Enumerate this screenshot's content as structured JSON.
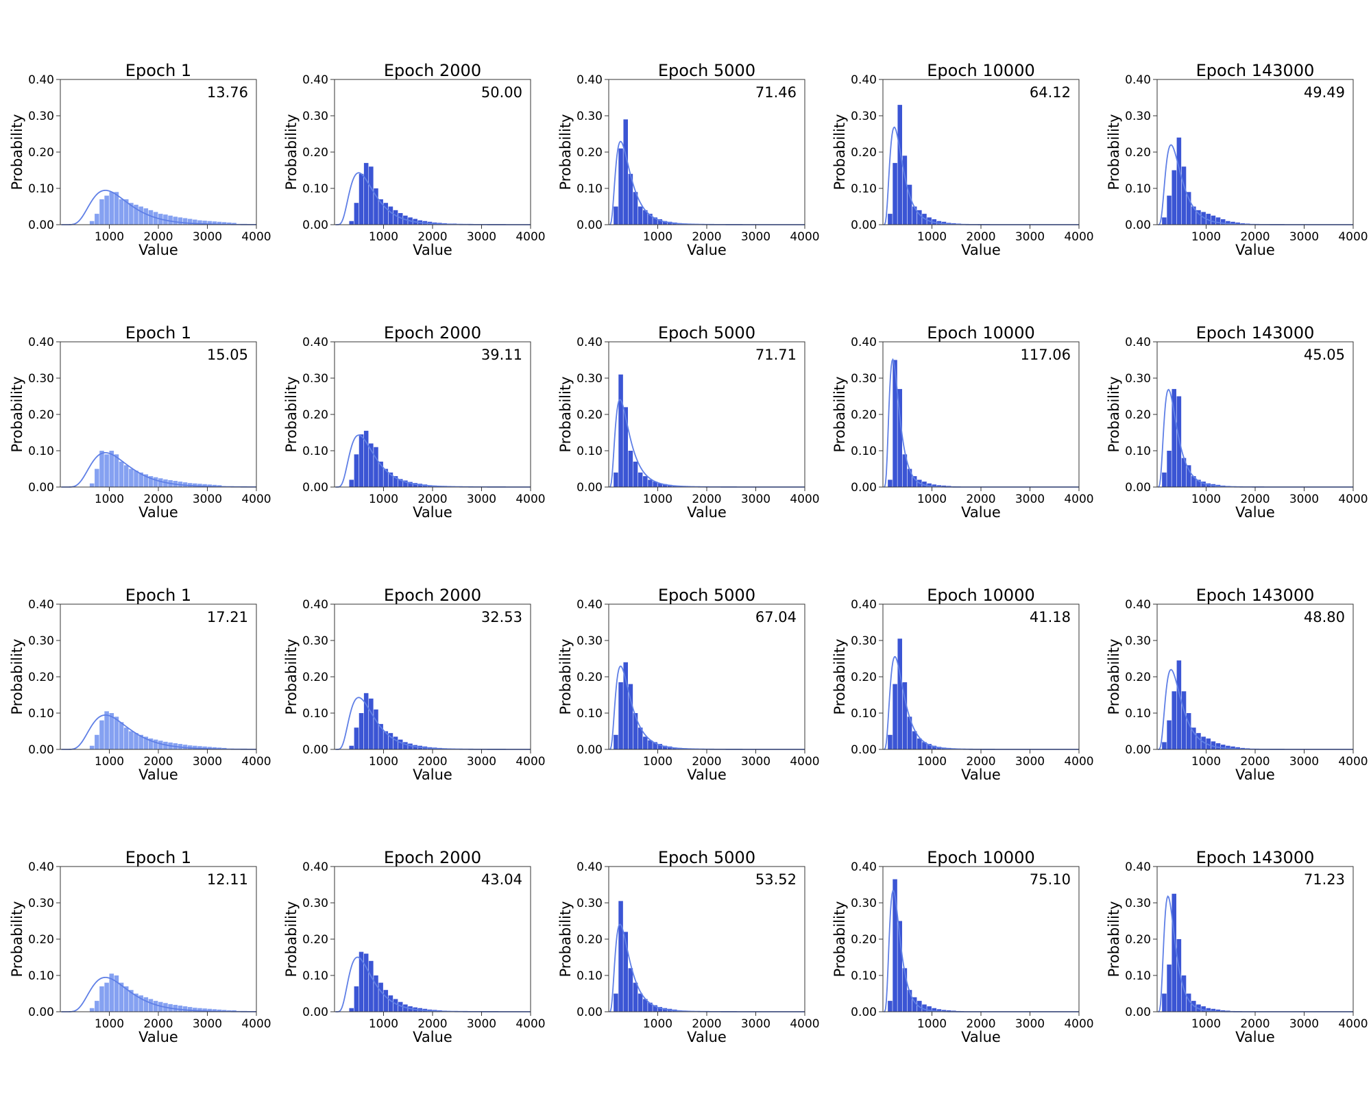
{
  "chart_data": {
    "type": "histogram-grid",
    "rows": 4,
    "cols": 5,
    "xlabel": "Value",
    "ylabel": "Probability",
    "xlim": [
      0,
      4000
    ],
    "ylim": [
      0,
      0.4
    ],
    "xticks": [
      1000,
      2000,
      3000,
      4000
    ],
    "yticks": [
      0.0,
      0.1,
      0.2,
      0.3,
      0.4
    ],
    "xtick_labels": [
      "1000",
      "2000",
      "3000",
      "4000"
    ],
    "ytick_labels": [
      "0.00",
      "0.10",
      "0.20",
      "0.30",
      "0.40"
    ],
    "colors": {
      "bars_dark": "#3b55d4",
      "bars_light": "#7e9cf0",
      "kde": "#5f7fe6",
      "frame": "#333333"
    },
    "bin_width": 100,
    "panels": [
      [
        {
          "title": "Epoch 1",
          "stat": "13.76",
          "bin_start": 600,
          "shade": "light",
          "kde": {
            "mu": 7.0,
            "sigma": 0.42
          },
          "values": [
            0.01,
            0.03,
            0.07,
            0.08,
            0.09,
            0.09,
            0.07,
            0.07,
            0.06,
            0.055,
            0.05,
            0.045,
            0.04,
            0.035,
            0.03,
            0.028,
            0.025,
            0.022,
            0.02,
            0.018,
            0.016,
            0.014,
            0.012,
            0.011,
            0.01,
            0.009,
            0.008,
            0.007,
            0.006,
            0.005
          ]
        },
        {
          "title": "Epoch 2000",
          "stat": "50.00",
          "bin_start": 300,
          "shade": "dark",
          "kde": {
            "mu": 6.45,
            "sigma": 0.5
          },
          "values": [
            0.01,
            0.06,
            0.14,
            0.17,
            0.16,
            0.1,
            0.07,
            0.06,
            0.05,
            0.04,
            0.032,
            0.025,
            0.02,
            0.016,
            0.012,
            0.01,
            0.008,
            0.006,
            0.005,
            0.004,
            0.003,
            0.003,
            0.002,
            0.002,
            0.002
          ]
        },
        {
          "title": "Epoch 5000",
          "stat": "71.46",
          "bin_start": 100,
          "shade": "dark",
          "kde": {
            "mu": 5.85,
            "sigma": 0.6
          },
          "values": [
            0.05,
            0.21,
            0.29,
            0.14,
            0.09,
            0.05,
            0.04,
            0.03,
            0.02,
            0.015,
            0.01,
            0.008,
            0.006,
            0.004,
            0.003,
            0.002,
            0.002,
            0.001
          ]
        },
        {
          "title": "Epoch 10000",
          "stat": "64.12",
          "bin_start": 100,
          "shade": "dark",
          "kde": {
            "mu": 5.75,
            "sigma": 0.55
          },
          "values": [
            0.03,
            0.17,
            0.33,
            0.19,
            0.11,
            0.05,
            0.04,
            0.03,
            0.02,
            0.015,
            0.01,
            0.008,
            0.005,
            0.004,
            0.003,
            0.002
          ]
        },
        {
          "title": "Epoch 143000",
          "stat": "49.49",
          "bin_start": 100,
          "shade": "dark",
          "kde": {
            "mu": 5.95,
            "sigma": 0.55
          },
          "values": [
            0.02,
            0.08,
            0.15,
            0.24,
            0.16,
            0.09,
            0.05,
            0.04,
            0.035,
            0.03,
            0.025,
            0.02,
            0.015,
            0.01,
            0.008,
            0.006,
            0.004,
            0.003,
            0.002
          ]
        }
      ],
      [
        {
          "title": "Epoch 1",
          "stat": "15.05",
          "bin_start": 600,
          "shade": "light",
          "kde": {
            "mu": 7.0,
            "sigma": 0.42
          },
          "values": [
            0.01,
            0.05,
            0.1,
            0.09,
            0.1,
            0.09,
            0.07,
            0.06,
            0.05,
            0.045,
            0.04,
            0.035,
            0.03,
            0.027,
            0.024,
            0.021,
            0.019,
            0.017,
            0.015,
            0.013,
            0.011,
            0.01,
            0.009,
            0.008,
            0.007,
            0.006,
            0.005
          ]
        },
        {
          "title": "Epoch 2000",
          "stat": "39.11",
          "bin_start": 300,
          "shade": "dark",
          "kde": {
            "mu": 6.45,
            "sigma": 0.5
          },
          "values": [
            0.02,
            0.09,
            0.145,
            0.155,
            0.12,
            0.11,
            0.07,
            0.05,
            0.04,
            0.03,
            0.022,
            0.018,
            0.014,
            0.011,
            0.009,
            0.007,
            0.005,
            0.004,
            0.003,
            0.003,
            0.002
          ]
        },
        {
          "title": "Epoch 5000",
          "stat": "71.71",
          "bin_start": 100,
          "shade": "dark",
          "kde": {
            "mu": 5.8,
            "sigma": 0.6
          },
          "values": [
            0.04,
            0.31,
            0.22,
            0.1,
            0.07,
            0.04,
            0.03,
            0.02,
            0.015,
            0.01,
            0.008,
            0.006,
            0.004,
            0.003,
            0.002
          ]
        },
        {
          "title": "Epoch 10000",
          "stat": "117.06",
          "bin_start": 100,
          "shade": "dark",
          "kde": {
            "mu": 5.55,
            "sigma": 0.5
          },
          "values": [
            0.02,
            0.35,
            0.27,
            0.09,
            0.05,
            0.03,
            0.02,
            0.015,
            0.01,
            0.007,
            0.005,
            0.004,
            0.003,
            0.002
          ]
        },
        {
          "title": "Epoch 143000",
          "stat": "45.05",
          "bin_start": 100,
          "shade": "dark",
          "kde": {
            "mu": 5.75,
            "sigma": 0.55
          },
          "values": [
            0.04,
            0.1,
            0.27,
            0.25,
            0.08,
            0.06,
            0.03,
            0.02,
            0.015,
            0.01,
            0.008,
            0.006,
            0.004,
            0.003,
            0.002
          ]
        }
      ],
      [
        {
          "title": "Epoch 1",
          "stat": "17.21",
          "bin_start": 600,
          "shade": "light",
          "kde": {
            "mu": 7.0,
            "sigma": 0.42
          },
          "values": [
            0.01,
            0.04,
            0.08,
            0.105,
            0.1,
            0.09,
            0.075,
            0.06,
            0.05,
            0.045,
            0.04,
            0.035,
            0.03,
            0.027,
            0.024,
            0.021,
            0.019,
            0.017,
            0.015,
            0.013,
            0.011,
            0.01,
            0.009,
            0.008,
            0.007,
            0.006,
            0.005,
            0.004
          ]
        },
        {
          "title": "Epoch 2000",
          "stat": "32.53",
          "bin_start": 300,
          "shade": "dark",
          "kde": {
            "mu": 6.45,
            "sigma": 0.5
          },
          "values": [
            0.01,
            0.06,
            0.1,
            0.155,
            0.14,
            0.11,
            0.07,
            0.05,
            0.045,
            0.035,
            0.027,
            0.02,
            0.016,
            0.012,
            0.01,
            0.008,
            0.006,
            0.005,
            0.004,
            0.003,
            0.002
          ]
        },
        {
          "title": "Epoch 5000",
          "stat": "67.04",
          "bin_start": 100,
          "shade": "dark",
          "kde": {
            "mu": 5.85,
            "sigma": 0.6
          },
          "values": [
            0.04,
            0.185,
            0.24,
            0.18,
            0.1,
            0.06,
            0.035,
            0.025,
            0.02,
            0.015,
            0.01,
            0.008,
            0.005,
            0.004,
            0.003,
            0.002
          ]
        },
        {
          "title": "Epoch 10000",
          "stat": "41.18",
          "bin_start": 100,
          "shade": "dark",
          "kde": {
            "mu": 5.8,
            "sigma": 0.55
          },
          "values": [
            0.04,
            0.18,
            0.305,
            0.185,
            0.09,
            0.05,
            0.03,
            0.02,
            0.015,
            0.01,
            0.007,
            0.005,
            0.004,
            0.003,
            0.002
          ]
        },
        {
          "title": "Epoch 143000",
          "stat": "48.80",
          "bin_start": 100,
          "shade": "dark",
          "kde": {
            "mu": 5.95,
            "sigma": 0.55
          },
          "values": [
            0.02,
            0.08,
            0.16,
            0.245,
            0.16,
            0.1,
            0.06,
            0.045,
            0.035,
            0.03,
            0.022,
            0.017,
            0.013,
            0.01,
            0.008,
            0.006,
            0.004,
            0.003,
            0.002
          ]
        }
      ],
      [
        {
          "title": "Epoch 1",
          "stat": "12.11",
          "bin_start": 600,
          "shade": "light",
          "kde": {
            "mu": 7.0,
            "sigma": 0.42
          },
          "values": [
            0.01,
            0.03,
            0.07,
            0.08,
            0.105,
            0.1,
            0.08,
            0.07,
            0.06,
            0.05,
            0.045,
            0.04,
            0.035,
            0.03,
            0.027,
            0.024,
            0.021,
            0.019,
            0.017,
            0.015,
            0.013,
            0.011,
            0.01,
            0.009,
            0.008,
            0.007,
            0.006,
            0.005,
            0.004,
            0.004
          ]
        },
        {
          "title": "Epoch 2000",
          "stat": "43.04",
          "bin_start": 300,
          "shade": "dark",
          "kde": {
            "mu": 6.4,
            "sigma": 0.5
          },
          "values": [
            0.01,
            0.07,
            0.165,
            0.16,
            0.14,
            0.1,
            0.08,
            0.06,
            0.045,
            0.035,
            0.027,
            0.02,
            0.015,
            0.012,
            0.01,
            0.008,
            0.006,
            0.005,
            0.004,
            0.003,
            0.002
          ]
        },
        {
          "title": "Epoch 5000",
          "stat": "53.52",
          "bin_start": 100,
          "shade": "dark",
          "kde": {
            "mu": 5.8,
            "sigma": 0.6
          },
          "values": [
            0.05,
            0.305,
            0.22,
            0.12,
            0.08,
            0.05,
            0.035,
            0.025,
            0.018,
            0.013,
            0.01,
            0.008,
            0.006,
            0.004,
            0.003,
            0.002
          ]
        },
        {
          "title": "Epoch 10000",
          "stat": "75.10",
          "bin_start": 100,
          "shade": "dark",
          "kde": {
            "mu": 5.6,
            "sigma": 0.5
          },
          "values": [
            0.03,
            0.365,
            0.25,
            0.12,
            0.06,
            0.04,
            0.03,
            0.02,
            0.015,
            0.01,
            0.007,
            0.005,
            0.004,
            0.003,
            0.002
          ]
        },
        {
          "title": "Epoch 143000",
          "stat": "71.23",
          "bin_start": 100,
          "shade": "dark",
          "kde": {
            "mu": 5.65,
            "sigma": 0.5
          },
          "values": [
            0.05,
            0.13,
            0.325,
            0.2,
            0.1,
            0.05,
            0.03,
            0.02,
            0.015,
            0.01,
            0.008,
            0.006,
            0.004,
            0.003,
            0.002
          ]
        }
      ]
    ]
  }
}
